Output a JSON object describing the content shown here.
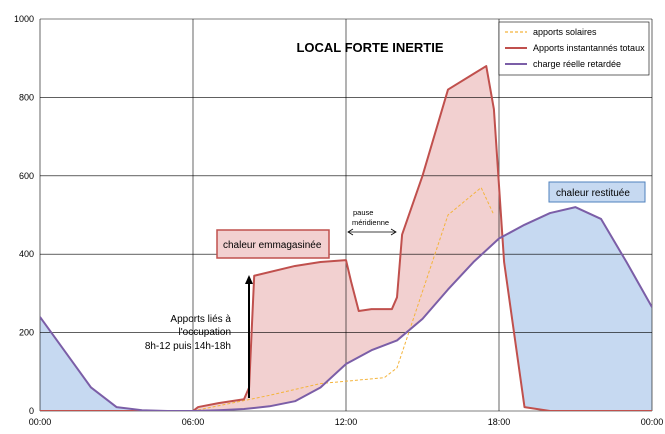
{
  "chart_data": {
    "type": "line",
    "title": "LOCAL FORTE INERTIE",
    "xlabel": "",
    "ylabel": "",
    "x_ticks": [
      "00:00",
      "06:00",
      "12:00",
      "18:00",
      "00:00"
    ],
    "y_ticks": [
      "0",
      "200",
      "400",
      "600",
      "800",
      "1000"
    ],
    "xlim": [
      0,
      24
    ],
    "ylim": [
      0,
      1000
    ],
    "grid": true,
    "legend_position": "top-right",
    "series": [
      {
        "name": "apports solaires",
        "color": "#f4b43c",
        "style": "dashed",
        "x": [
          6,
          7.5,
          9,
          11,
          13.5,
          14,
          16,
          17.3,
          17.8
        ],
        "y": [
          0,
          20,
          40,
          70,
          85,
          110,
          500,
          570,
          500
        ]
      },
      {
        "name": "Apports instantannés totaux",
        "color": "#c0504d",
        "style": "solid",
        "x": [
          0,
          6,
          6.2,
          7,
          8,
          8.2,
          8.4,
          10,
          11,
          12,
          12.2,
          12.5,
          13,
          13.8,
          14,
          14.2,
          15,
          16,
          17,
          17.5,
          17.8,
          18.2,
          19,
          20,
          24
        ],
        "y": [
          0,
          0,
          10,
          20,
          30,
          60,
          345,
          370,
          380,
          385,
          330,
          255,
          260,
          260,
          290,
          450,
          600,
          820,
          860,
          880,
          770,
          380,
          10,
          0,
          0
        ]
      },
      {
        "name": "charge réelle retardée",
        "color": "#7b5ea7",
        "style": "solid",
        "x": [
          0,
          1,
          2,
          3,
          4,
          5,
          6,
          7,
          8,
          9,
          10,
          11,
          12,
          13,
          14,
          15,
          16,
          17,
          18,
          19,
          20,
          21,
          22,
          23,
          24
        ],
        "y": [
          240,
          150,
          60,
          10,
          2,
          0,
          0,
          2,
          5,
          12,
          25,
          60,
          120,
          155,
          180,
          235,
          310,
          380,
          440,
          475,
          505,
          520,
          490,
          380,
          265
        ]
      }
    ],
    "annotations": {
      "chaleur_emmagasinee": "chaleur emmagasinée",
      "chaleur_restituee": "chaleur restituée",
      "pause_line1": "pause",
      "pause_line2": "méridienne",
      "apports_line1": "Apports liés à",
      "apports_line2": "l'occupation",
      "apports_line3": "8h-12  puis 14h-18h"
    },
    "colors": {
      "stored_fill": "#f2d0d0",
      "restored_fill": "#c6d9f1",
      "restored_box_fill": "#c6d9f1",
      "restored_box_border": "#4f81bd",
      "stored_box_fill": "#f2d0d0",
      "stored_box_border": "#c0504d",
      "grid": "#000000"
    }
  }
}
